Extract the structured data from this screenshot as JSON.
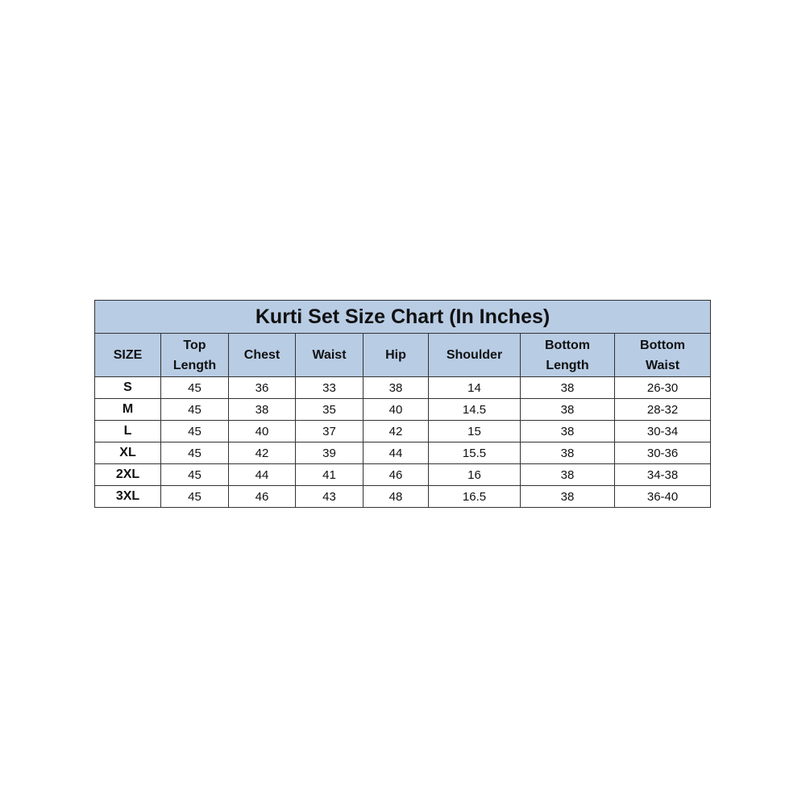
{
  "title": "Kurti Set Size Chart (In Inches)",
  "header_color": "#b8cce4",
  "columns": [
    "SIZE",
    "Top Length",
    "Chest",
    "Waist",
    "Hip",
    "Shoulder",
    "Bottom Length",
    "Bottom Waist"
  ],
  "rows": [
    [
      "S",
      "45",
      "36",
      "33",
      "38",
      "14",
      "38",
      "26-30"
    ],
    [
      "M",
      "45",
      "38",
      "35",
      "40",
      "14.5",
      "38",
      "28-32"
    ],
    [
      "L",
      "45",
      "40",
      "37",
      "42",
      "15",
      "38",
      "30-34"
    ],
    [
      "XL",
      "45",
      "42",
      "39",
      "44",
      "15.5",
      "38",
      "30-36"
    ],
    [
      "2XL",
      "45",
      "44",
      "41",
      "46",
      "16",
      "38",
      "34-38"
    ],
    [
      "3XL",
      "45",
      "46",
      "43",
      "48",
      "16.5",
      "38",
      "36-40"
    ]
  ]
}
